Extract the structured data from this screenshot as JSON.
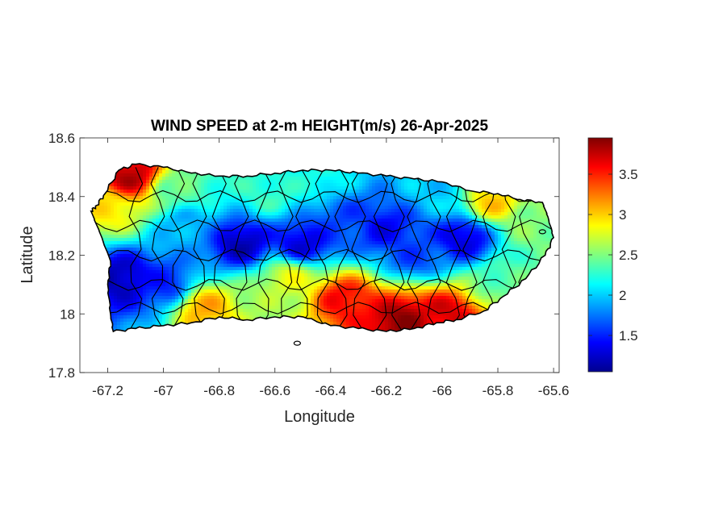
{
  "chart_data": {
    "type": "heatmap",
    "title": "WIND SPEED at 2-m HEIGHT(m/s) 26-Apr-2025",
    "xlabel": "Longitude",
    "ylabel": "Latitude",
    "xlim": [
      -67.3,
      -65.58
    ],
    "ylim": [
      17.8,
      18.6
    ],
    "xticks": [
      -67.2,
      -67,
      -66.8,
      -66.6,
      -66.4,
      -66.2,
      -66,
      -65.8,
      -65.6
    ],
    "xtick_labels": [
      "-67.2",
      "-67",
      "-66.8",
      "-66.6",
      "-66.4",
      "-66.2",
      "-66",
      "-65.8",
      "-65.6"
    ],
    "yticks": [
      17.8,
      18,
      18.2,
      18.4,
      18.6
    ],
    "ytick_labels": [
      "17.8",
      "18",
      "18.2",
      "18.4",
      "18.6"
    ],
    "colorbar": {
      "colormap": "jet",
      "clim": [
        1.05,
        3.95
      ],
      "ticks": [
        1.5,
        2,
        2.5,
        3,
        3.5
      ],
      "tick_labels": [
        "1.5",
        "2",
        "2.5",
        "3",
        "3.5"
      ]
    },
    "field_centers": [
      {
        "lon": -67.12,
        "lat": 18.47,
        "value": 3.8
      },
      {
        "lon": -67.2,
        "lat": 18.36,
        "value": 2.9
      },
      {
        "lon": -67.15,
        "lat": 18.12,
        "value": 1.2
      },
      {
        "lon": -67.0,
        "lat": 18.1,
        "value": 1.5
      },
      {
        "lon": -66.95,
        "lat": 18.42,
        "value": 2.4
      },
      {
        "lon": -66.92,
        "lat": 18.3,
        "value": 1.9
      },
      {
        "lon": -66.72,
        "lat": 18.24,
        "value": 1.2
      },
      {
        "lon": -66.85,
        "lat": 18.02,
        "value": 3.1
      },
      {
        "lon": -66.62,
        "lat": 18.03,
        "value": 2.6
      },
      {
        "lon": -66.5,
        "lat": 18.24,
        "value": 1.3
      },
      {
        "lon": -66.62,
        "lat": 18.41,
        "value": 2.3
      },
      {
        "lon": -66.35,
        "lat": 18.32,
        "value": 1.6
      },
      {
        "lon": -66.35,
        "lat": 18.05,
        "value": 3.6
      },
      {
        "lon": -66.15,
        "lat": 17.98,
        "value": 3.9
      },
      {
        "lon": -65.98,
        "lat": 18.0,
        "value": 3.7
      },
      {
        "lon": -66.2,
        "lat": 18.29,
        "value": 1.4
      },
      {
        "lon": -66.1,
        "lat": 18.2,
        "value": 1.6
      },
      {
        "lon": -65.92,
        "lat": 18.26,
        "value": 1.3
      },
      {
        "lon": -65.82,
        "lat": 18.38,
        "value": 3.0
      },
      {
        "lon": -65.68,
        "lat": 18.3,
        "value": 2.5
      },
      {
        "lon": -66.02,
        "lat": 18.42,
        "value": 2.0
      },
      {
        "lon": -66.45,
        "lat": 18.46,
        "value": 2.2
      },
      {
        "lon": -65.8,
        "lat": 18.1,
        "value": 2.4
      },
      {
        "lon": -66.55,
        "lat": 18.12,
        "value": 2.8
      }
    ],
    "island_outline": [
      [
        -67.24,
        18.37
      ],
      [
        -67.21,
        18.41
      ],
      [
        -67.16,
        18.49
      ],
      [
        -67.1,
        18.51
      ],
      [
        -67.0,
        18.5
      ],
      [
        -66.9,
        18.48
      ],
      [
        -66.8,
        18.47
      ],
      [
        -66.7,
        18.47
      ],
      [
        -66.6,
        18.48
      ],
      [
        -66.5,
        18.49
      ],
      [
        -66.4,
        18.49
      ],
      [
        -66.3,
        18.48
      ],
      [
        -66.2,
        18.47
      ],
      [
        -66.1,
        18.46
      ],
      [
        -66.0,
        18.45
      ],
      [
        -65.9,
        18.42
      ],
      [
        -65.8,
        18.41
      ],
      [
        -65.72,
        18.39
      ],
      [
        -65.64,
        18.38
      ],
      [
        -65.62,
        18.33
      ],
      [
        -65.6,
        18.26
      ],
      [
        -65.63,
        18.2
      ],
      [
        -65.7,
        18.12
      ],
      [
        -65.78,
        18.06
      ],
      [
        -65.85,
        18.01
      ],
      [
        -65.95,
        17.98
      ],
      [
        -66.02,
        17.97
      ],
      [
        -66.1,
        17.95
      ],
      [
        -66.2,
        17.94
      ],
      [
        -66.3,
        17.95
      ],
      [
        -66.4,
        17.96
      ],
      [
        -66.5,
        17.99
      ],
      [
        -66.6,
        17.99
      ],
      [
        -66.7,
        17.98
      ],
      [
        -66.8,
        17.99
      ],
      [
        -66.9,
        17.97
      ],
      [
        -67.0,
        17.96
      ],
      [
        -67.1,
        17.95
      ],
      [
        -67.18,
        17.94
      ],
      [
        -67.19,
        18.0
      ],
      [
        -67.2,
        18.1
      ],
      [
        -67.19,
        18.18
      ],
      [
        -67.23,
        18.28
      ],
      [
        -67.26,
        18.35
      ]
    ],
    "small_islands": [
      {
        "name": "cayo-east",
        "lon": -65.64,
        "lat": 18.28
      },
      {
        "name": "caja-de-muerto",
        "lon": -66.52,
        "lat": 17.9
      }
    ]
  }
}
